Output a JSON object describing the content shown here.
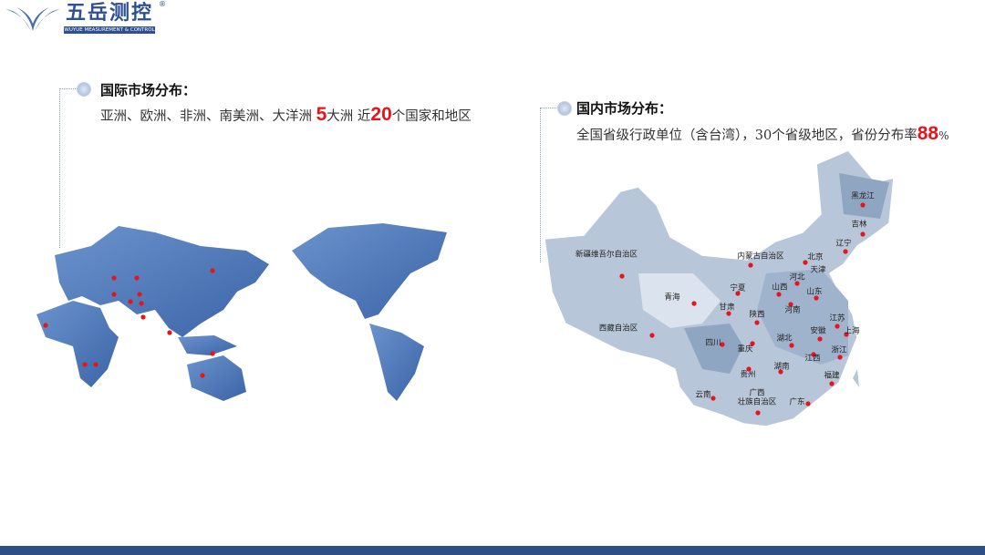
{
  "logo": {
    "name": "五岳测控",
    "subtitle": "WUYUE MEASUREMENT & CONTROL",
    "registered": "®"
  },
  "international": {
    "heading": "国际市场分布：",
    "text_a": "亚洲、欧洲、非洲、南美洲、大洋洲 ",
    "num_continents": "5",
    "text_b": "大洲  近",
    "num_countries": "20",
    "text_c": "个国家和地区"
  },
  "domestic": {
    "heading": "国内市场分布：",
    "text_a": "全国省级行政单位（含台湾），30个省级地区，省份分布率",
    "rate": "88",
    "pct": "%"
  },
  "provinces": [
    "新疆维吾尔自治区",
    "西藏自治区",
    "青海",
    "甘肃",
    "宁夏",
    "内蒙古自治区",
    "黑龙江",
    "吉林",
    "辽宁",
    "北京",
    "天津",
    "河北",
    "山西",
    "山东",
    "河南",
    "陕西",
    "江苏",
    "上海",
    "安徽",
    "四川",
    "重庆",
    "湖北",
    "浙江",
    "江西",
    "湖南",
    "贵州",
    "福建",
    "云南",
    "广西\n壮族自治区",
    "广东"
  ],
  "colors": {
    "brand": "#2d4f93",
    "marker": "#e8141b",
    "world_map": "#4f7bbd",
    "china_map": "#b7c6d8"
  }
}
